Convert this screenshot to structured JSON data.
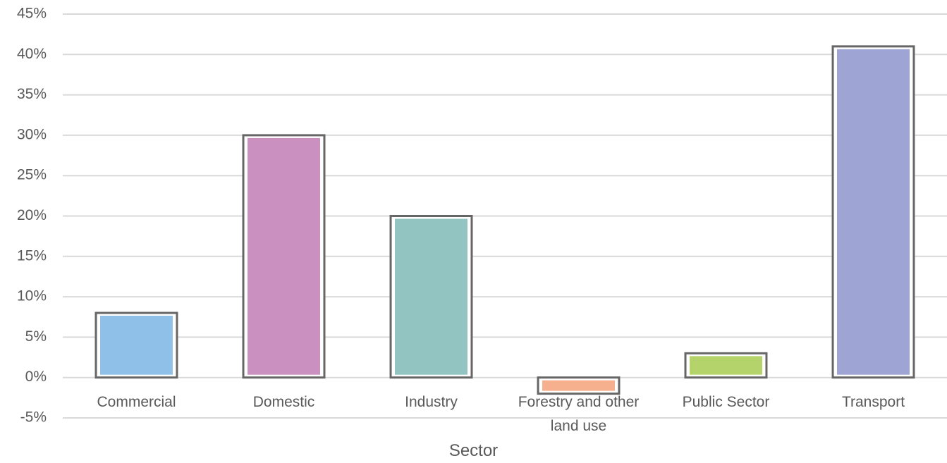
{
  "chart_data": {
    "type": "bar",
    "x_label": "Sector",
    "categories": [
      "Commercial",
      "Domestic",
      "Industry",
      "Forestry and other land use",
      "Public Sector",
      "Transport"
    ],
    "values": [
      8,
      30,
      20,
      -2,
      3,
      41
    ],
    "colors": [
      "#8fc1e8",
      "#c990c0",
      "#92c5c1",
      "#f6b08e",
      "#b5d36b",
      "#9ea5d4"
    ],
    "ylim": [
      -5,
      45
    ],
    "yticks": [
      {
        "value": -5,
        "label": "-5%"
      },
      {
        "value": 0,
        "label": "0%"
      },
      {
        "value": 5,
        "label": "5%"
      },
      {
        "value": 10,
        "label": "10%"
      },
      {
        "value": 15,
        "label": "15%"
      },
      {
        "value": 20,
        "label": "20%"
      },
      {
        "value": 25,
        "label": "25%"
      },
      {
        "value": 30,
        "label": "30%"
      },
      {
        "value": 35,
        "label": "35%"
      },
      {
        "value": 40,
        "label": "40%"
      },
      {
        "value": 45,
        "label": "45%"
      }
    ],
    "grid": true
  }
}
